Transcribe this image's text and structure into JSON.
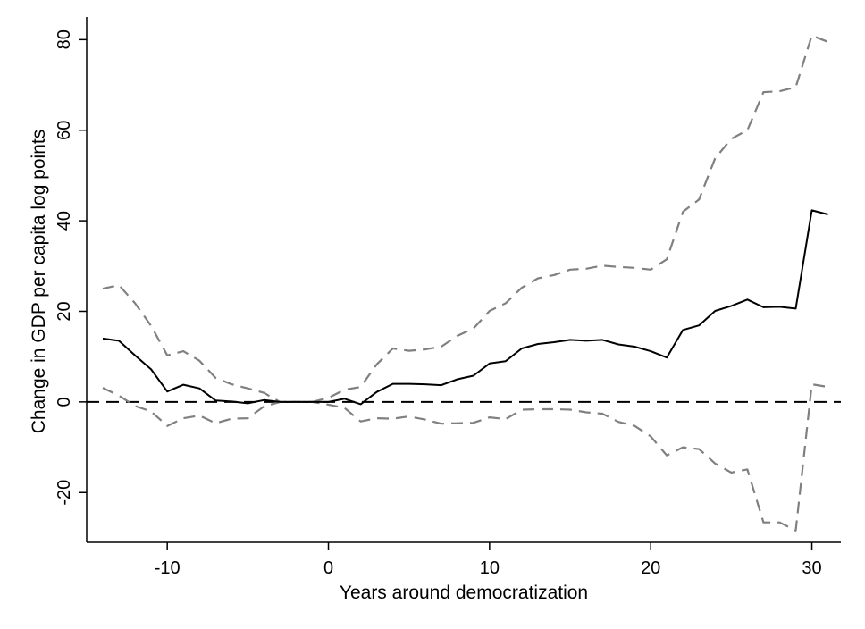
{
  "chart_data": {
    "type": "line",
    "title": "",
    "xlabel": "Years around democratization",
    "ylabel": "Change in GDP per capita log points",
    "xlim": [
      -15,
      31.8
    ],
    "ylim": [
      -31,
      85
    ],
    "xticks": [
      -10,
      0,
      10,
      20,
      30
    ],
    "yticks": [
      -20,
      0,
      20,
      40,
      60,
      80
    ],
    "xtick_labels": [
      "-10",
      "0",
      "10",
      "20",
      "30"
    ],
    "ytick_labels": [
      "-20",
      "0",
      "20",
      "40",
      "60",
      "80"
    ],
    "grid": false,
    "legend": "none",
    "reference_line": {
      "y": 0,
      "style": "dashed",
      "color": "#000000"
    },
    "x": [
      -14,
      -13,
      -12,
      -11,
      -10,
      -9,
      -8,
      -7,
      -6,
      -5,
      -4,
      -3,
      -2,
      -1,
      0,
      1,
      2,
      3,
      4,
      5,
      6,
      7,
      8,
      9,
      10,
      11,
      12,
      13,
      14,
      15,
      16,
      17,
      18,
      19,
      20,
      21,
      22,
      23,
      24,
      25,
      26,
      27,
      28,
      29,
      30,
      31
    ],
    "series": [
      {
        "role": "estimate",
        "style": "solid",
        "color": "#000000",
        "values": [
          14.0,
          13.5,
          10.3,
          7.2,
          2.3,
          3.8,
          3.0,
          0.3,
          0.1,
          -0.3,
          0.4,
          0.0,
          0.0,
          0.0,
          0.0,
          0.7,
          -0.5,
          2.2,
          4.0,
          4.0,
          3.9,
          3.7,
          5.0,
          5.8,
          8.5,
          9.0,
          11.8,
          12.8,
          13.2,
          13.7,
          13.5,
          13.7,
          12.7,
          12.2,
          11.2,
          9.8,
          15.9,
          16.9,
          20.1,
          21.2,
          22.6,
          20.9,
          21.0,
          20.6,
          42.3,
          41.4
        ]
      },
      {
        "role": "upper-bound",
        "style": "dashed",
        "color": "#808080",
        "values": [
          25.0,
          25.8,
          21.8,
          16.8,
          10.3,
          11.2,
          9.1,
          5.3,
          3.9,
          3.0,
          2.0,
          0.0,
          0.0,
          0.0,
          0.9,
          2.7,
          3.3,
          8.3,
          11.8,
          11.3,
          11.6,
          12.2,
          14.6,
          16.2,
          20.1,
          21.8,
          25.2,
          27.3,
          28.0,
          29.2,
          29.4,
          30.1,
          29.8,
          29.6,
          29.2,
          31.5,
          42.0,
          44.7,
          53.8,
          58.1,
          60.0,
          68.4,
          68.6,
          69.5,
          80.9,
          79.5
        ]
      },
      {
        "role": "lower-bound",
        "style": "dashed",
        "color": "#808080",
        "values": [
          3.1,
          1.4,
          -0.9,
          -2.1,
          -5.3,
          -3.6,
          -3.0,
          -4.7,
          -3.7,
          -3.6,
          -1.0,
          0.0,
          0.0,
          0.0,
          -0.6,
          -1.3,
          -4.3,
          -3.6,
          -3.7,
          -3.2,
          -3.9,
          -4.8,
          -4.7,
          -4.6,
          -3.4,
          -3.8,
          -1.7,
          -1.6,
          -1.6,
          -1.7,
          -2.3,
          -2.6,
          -4.4,
          -5.3,
          -7.6,
          -11.8,
          -10.0,
          -10.4,
          -13.6,
          -15.6,
          -14.9,
          -26.6,
          -26.6,
          -28.4,
          3.9,
          3.3
        ]
      }
    ]
  }
}
